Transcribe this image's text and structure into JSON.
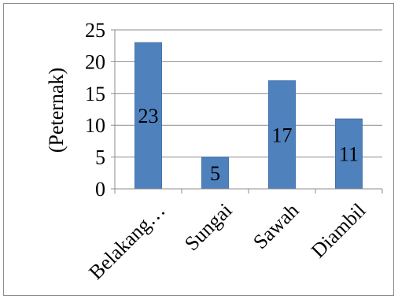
{
  "chart_data": {
    "type": "bar",
    "title": "",
    "xlabel": "",
    "ylabel": "(Peternak)",
    "categories": [
      "Belakang…",
      "Sungai",
      "Sawah",
      "Diambil"
    ],
    "values": [
      23,
      5,
      17,
      11
    ],
    "data_labels": [
      "23",
      "5",
      "17",
      "11"
    ],
    "y_ticks": [
      "0",
      "5",
      "10",
      "15",
      "20",
      "25"
    ],
    "ylim": [
      0,
      25
    ],
    "grid": true,
    "legend": "none",
    "colors": {
      "bar": "#4f81bd",
      "bar_edge": "#4573ad",
      "grid": "#8c8c8c",
      "axis": "#8c8c8c"
    }
  }
}
